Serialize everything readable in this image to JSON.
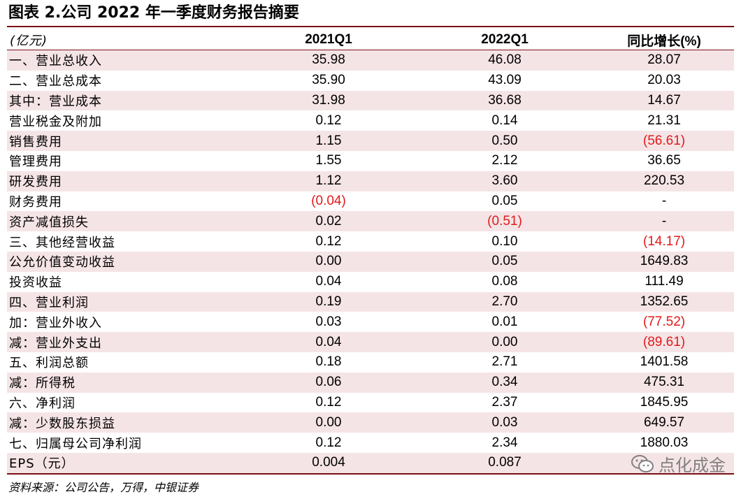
{
  "title": "图表 2.公司 2022 年一季度财务报告摘要",
  "header": {
    "label": "(亿元)",
    "col1": "2021Q1",
    "col2": "2022Q1",
    "col3": "同比增长(%)"
  },
  "rows": [
    {
      "label": "一、营业总收入",
      "v2021": "35.98",
      "v2022": "46.08",
      "yoy": "28.07"
    },
    {
      "label": "二、营业总成本",
      "v2021": "35.90",
      "v2022": "43.09",
      "yoy": "20.03"
    },
    {
      "label": "其中：营业成本",
      "v2021": "31.98",
      "v2022": "36.68",
      "yoy": "14.67"
    },
    {
      "label": "营业税金及附加",
      "v2021": "0.12",
      "v2022": "0.14",
      "yoy": "21.31"
    },
    {
      "label": "销售费用",
      "v2021": "1.15",
      "v2022": "0.50",
      "yoy": "(56.61)"
    },
    {
      "label": "管理费用",
      "v2021": "1.55",
      "v2022": "2.12",
      "yoy": "36.65"
    },
    {
      "label": "研发费用",
      "v2021": "1.12",
      "v2022": "3.60",
      "yoy": "220.53"
    },
    {
      "label": "财务费用",
      "v2021": "(0.04)",
      "v2022": "0.05",
      "yoy": "-"
    },
    {
      "label": "资产减值损失",
      "v2021": "0.02",
      "v2022": "(0.51)",
      "yoy": "-"
    },
    {
      "label": "三、其他经营收益",
      "v2021": "0.12",
      "v2022": "0.10",
      "yoy": "(14.17)"
    },
    {
      "label": "公允价值变动收益",
      "v2021": "0.00",
      "v2022": "0.05",
      "yoy": "1649.83"
    },
    {
      "label": "投资收益",
      "v2021": "0.04",
      "v2022": "0.08",
      "yoy": "111.49"
    },
    {
      "label": "四、营业利润",
      "v2021": "0.19",
      "v2022": "2.70",
      "yoy": "1352.65"
    },
    {
      "label": "加：营业外收入",
      "v2021": "0.03",
      "v2022": "0.01",
      "yoy": "(77.52)"
    },
    {
      "label": "减：营业外支出",
      "v2021": "0.04",
      "v2022": "0.00",
      "yoy": "(89.61)"
    },
    {
      "label": "五、利润总额",
      "v2021": "0.18",
      "v2022": "2.71",
      "yoy": "1401.58"
    },
    {
      "label": "减：所得税",
      "v2021": "0.06",
      "v2022": "0.34",
      "yoy": "475.31"
    },
    {
      "label": "六、净利润",
      "v2021": "0.12",
      "v2022": "2.37",
      "yoy": "1845.95"
    },
    {
      "label": "减：少数股东损益",
      "v2021": "0.00",
      "v2022": "0.03",
      "yoy": "649.57"
    },
    {
      "label": "七、归属母公司净利润",
      "v2021": "0.12",
      "v2022": "2.34",
      "yoy": "1880.03"
    },
    {
      "label": "EPS（元）",
      "v2021": "0.004",
      "v2022": "0.087",
      "yoy": ""
    }
  ],
  "source": "资料来源：公司公告，万得，中银证券",
  "watermark": "点化成金",
  "colors": {
    "accent": "#7a0f14",
    "shade": "#f5e4e6",
    "negative": "#e21a1a"
  }
}
